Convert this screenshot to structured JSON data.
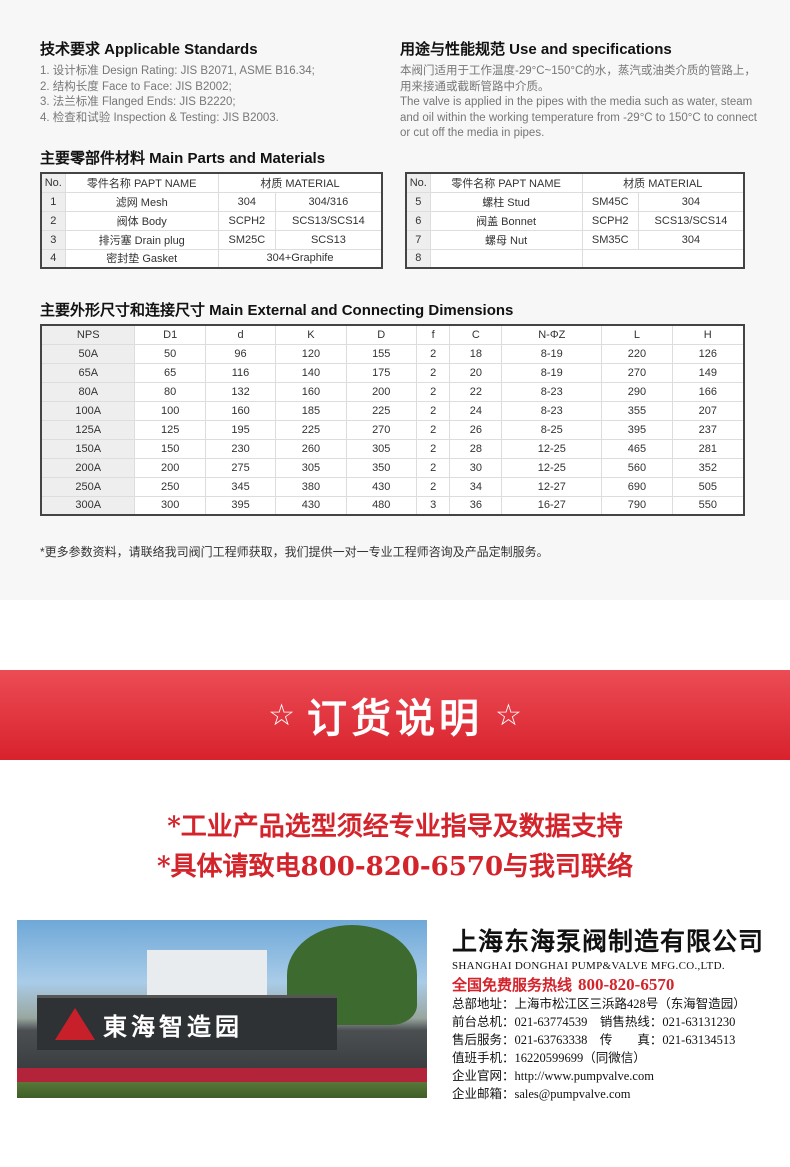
{
  "standards": {
    "title": "技术要求 Applicable Standards",
    "items": [
      "1. 设计标准 Design Rating: JIS B2071, ASME B16.34;",
      "2. 结构长度 Face to Face: JIS B2002;",
      "3. 法兰标准 Flanged Ends: JIS B2220;",
      "4. 检查和试验 Inspection & Testing: JIS B2003."
    ]
  },
  "use": {
    "title": "用途与性能规范 Use and specifications",
    "cn": "本阀门适用于工作温度-29°C~150°C的水，蒸汽或油类介质的管路上，用来接通或截断管路中介质。",
    "en": "The valve is applied in the pipes with the media such as water, steam and oil within the working temperature from -29°C to 150°C to connect or cut off the media in pipes."
  },
  "parts": {
    "title": "主要零部件材料 Main Parts and Materials",
    "headers": [
      "No.",
      "零件名称 PAPT NAME",
      "材质 MATERIAL"
    ],
    "left": [
      [
        "1",
        "滤网 Mesh",
        "304",
        "304/316"
      ],
      [
        "2",
        "阀体 Body",
        "SCPH2",
        "SCS13/SCS14"
      ],
      [
        "3",
        "排污塞 Drain plug",
        "SM25C",
        "SCS13"
      ],
      [
        "4",
        "密封垫 Gasket",
        "304+Graphife"
      ]
    ],
    "right": [
      [
        "5",
        "螺柱 Stud",
        "SM45C",
        "304"
      ],
      [
        "6",
        "阀盖 Bonnet",
        "SCPH2",
        "SCS13/SCS14"
      ],
      [
        "7",
        "螺母 Nut",
        "SM35C",
        "304"
      ],
      [
        "8",
        "",
        ""
      ]
    ]
  },
  "dims": {
    "title": "主要外形尺寸和连接尺寸 Main External and Connecting Dimensions",
    "headers": [
      "NPS",
      "D1",
      "d",
      "K",
      "D",
      "f",
      "C",
      "N-ΦZ",
      "L",
      "H"
    ],
    "rows": [
      [
        "50A",
        "50",
        "96",
        "120",
        "155",
        "2",
        "18",
        "8-19",
        "220",
        "126"
      ],
      [
        "65A",
        "65",
        "116",
        "140",
        "175",
        "2",
        "20",
        "8-19",
        "270",
        "149"
      ],
      [
        "80A",
        "80",
        "132",
        "160",
        "200",
        "2",
        "22",
        "8-23",
        "290",
        "166"
      ],
      [
        "100A",
        "100",
        "160",
        "185",
        "225",
        "2",
        "24",
        "8-23",
        "355",
        "207"
      ],
      [
        "125A",
        "125",
        "195",
        "225",
        "270",
        "2",
        "26",
        "8-25",
        "395",
        "237"
      ],
      [
        "150A",
        "150",
        "230",
        "260",
        "305",
        "2",
        "28",
        "12-25",
        "465",
        "281"
      ],
      [
        "200A",
        "200",
        "275",
        "305",
        "350",
        "2",
        "30",
        "12-25",
        "560",
        "352"
      ],
      [
        "250A",
        "250",
        "345",
        "380",
        "430",
        "2",
        "34",
        "12-27",
        "690",
        "505"
      ],
      [
        "300A",
        "300",
        "395",
        "430",
        "480",
        "3",
        "36",
        "16-27",
        "790",
        "550"
      ]
    ]
  },
  "note": "*更多参数资料，请联络我司阀门工程师获取，我们提供一对一专业工程师咨询及产品定制服务。",
  "banner": {
    "star": "☆",
    "title": "订货说明"
  },
  "order_lines": [
    "*工业产品选型须经专业指导及数据支持",
    "*具体请致电800-820-6570与我司联络"
  ],
  "photo": {
    "sign_text": "東海智造园"
  },
  "company": {
    "name_cn": "上海东海泵阀制造有限公司",
    "name_en": "SHANGHAI DONGHAI PUMP&VALVE MFG.CO.,LTD.",
    "hotline_label": "全国免费服务热线",
    "hotline": "800-820-6570",
    "lines": [
      "总部地址：上海市松江区三浜路428号（东海智造园）",
      "前台总机：021-63774539　销售热线：021-63131230",
      "售后服务：021-63763338　传　　真：021-63134513",
      "值班手机：16220599699（同微信）",
      "企业官网：http://www.pumpvalve.com",
      "企业邮箱：sales@pumpvalve.com"
    ]
  },
  "colors": {
    "accent": "#d3232b",
    "banner": "#e03540"
  }
}
